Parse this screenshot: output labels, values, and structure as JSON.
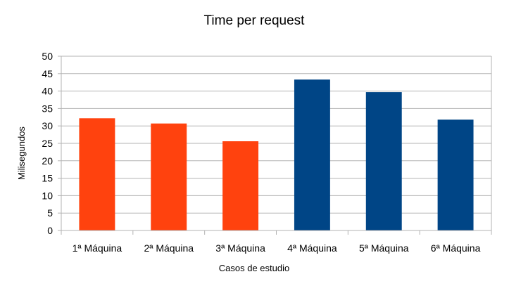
{
  "chart_data": {
    "type": "bar",
    "title": "Time per request",
    "xlabel": "Casos de estudio",
    "ylabel": "Milisegundos",
    "categories": [
      "1ª Máquina",
      "2ª Máquina",
      "3ª Máquina",
      "4ª Máquina",
      "5ª Máquina",
      "6ª Máquina"
    ],
    "values": [
      32.2,
      30.7,
      25.6,
      43.3,
      39.7,
      31.8
    ],
    "bar_colors": [
      "#ff420e",
      "#ff420e",
      "#ff420e",
      "#004586",
      "#004586",
      "#004586"
    ],
    "ylim": [
      0,
      50
    ],
    "yticks": [
      0,
      5,
      10,
      15,
      20,
      25,
      30,
      35,
      40,
      45,
      50
    ],
    "grid": true,
    "legend": "none"
  },
  "colors": {
    "gridline": "#b3b3b3",
    "axis": "#b3b3b3",
    "background": "#ffffff"
  }
}
